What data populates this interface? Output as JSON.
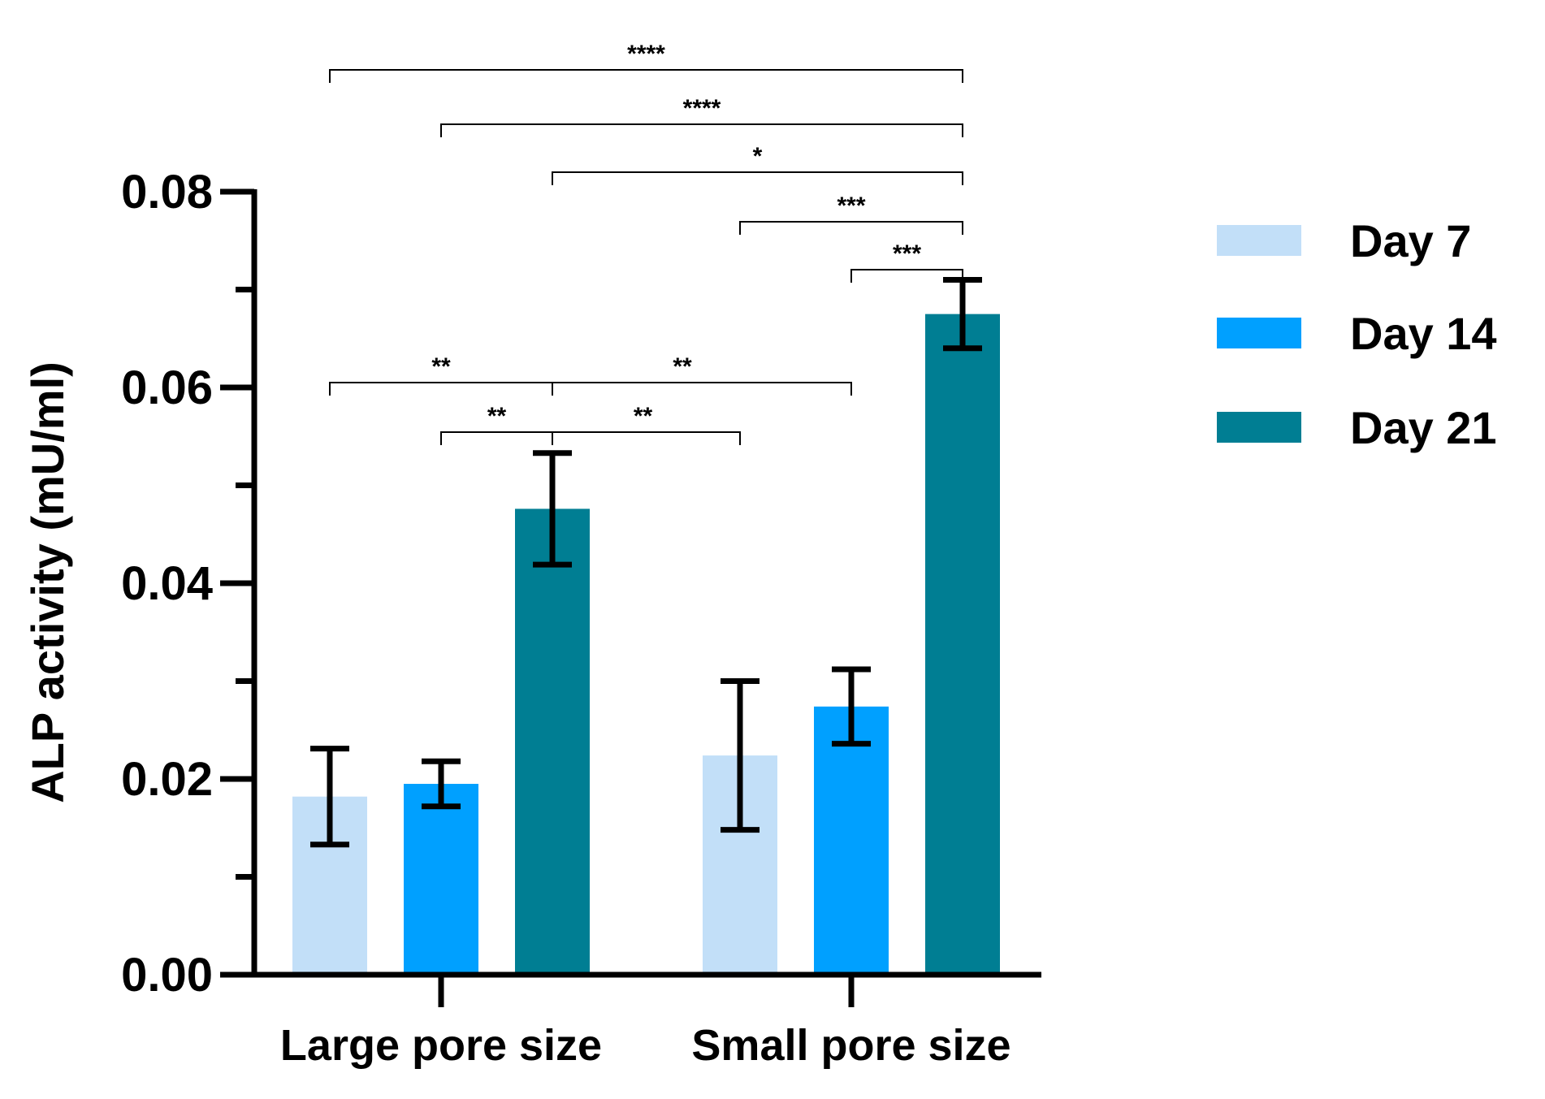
{
  "chart_data": {
    "type": "bar",
    "title": "",
    "xlabel": "",
    "ylabel": "ALP activity (mU/ml)",
    "ylim": [
      0,
      0.08
    ],
    "y_ticks": [
      0.0,
      0.02,
      0.04,
      0.06,
      0.08
    ],
    "y_tick_labels": [
      "0.00",
      "0.02",
      "0.04",
      "0.06",
      "0.08"
    ],
    "categories": [
      "Large pore size",
      "Small pore size"
    ],
    "series": [
      {
        "name": "Day 7",
        "color": "#c2dff8",
        "values": [
          0.0182,
          0.0224
        ],
        "errors": [
          0.0049,
          0.0076
        ]
      },
      {
        "name": "Day 14",
        "color": "#00a0ff",
        "values": [
          0.0195,
          0.0274
        ],
        "errors": [
          0.0023,
          0.0038
        ]
      },
      {
        "name": "Day 21",
        "color": "#007e93",
        "values": [
          0.0476,
          0.0675
        ],
        "errors": [
          0.0057,
          0.0035
        ]
      }
    ],
    "legend_position": "right",
    "significance": [
      {
        "from": [
          0,
          0
        ],
        "to": [
          1,
          2
        ],
        "label": "****"
      },
      {
        "from": [
          0,
          1
        ],
        "to": [
          1,
          2
        ],
        "label": "****"
      },
      {
        "from": [
          0,
          2
        ],
        "to": [
          1,
          2
        ],
        "label": "*"
      },
      {
        "from": [
          1,
          0
        ],
        "to": [
          1,
          2
        ],
        "label": "***"
      },
      {
        "from": [
          1,
          1
        ],
        "to": [
          1,
          2
        ],
        "label": "***"
      },
      {
        "from": [
          0,
          0
        ],
        "to": [
          0,
          2
        ],
        "label": "**"
      },
      {
        "from": [
          0,
          1
        ],
        "to": [
          0,
          2
        ],
        "label": "**"
      },
      {
        "from": [
          0,
          2
        ],
        "to": [
          1,
          1
        ],
        "label": "**"
      },
      {
        "from": [
          0,
          2
        ],
        "to": [
          1,
          0
        ],
        "label": "**"
      }
    ]
  }
}
